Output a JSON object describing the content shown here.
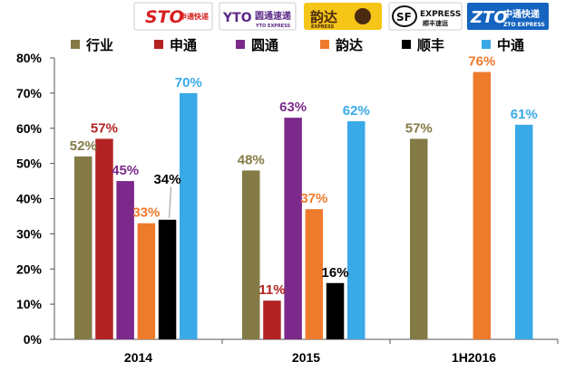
{
  "logos": {
    "sto": {
      "main": "STO",
      "sub": "申通快递"
    },
    "yto": {
      "main": "YTO",
      "cn": "圆通速递",
      "sub": "YTO EXPRESS"
    },
    "yunda": {
      "main": "韵达",
      "sub": "EXPRESS"
    },
    "sf": {
      "main": "SF",
      "en": "EXPRESS",
      "cn": "顺丰速运"
    },
    "zto": {
      "main": "ZTO",
      "cn": "中通快递",
      "sub": "ZTO EXPRESS"
    }
  },
  "chart_data": {
    "type": "bar",
    "categories": [
      "2014",
      "2015",
      "1H2016"
    ],
    "ylim": [
      0,
      80
    ],
    "yticks": [
      "0%",
      "10%",
      "20%",
      "30%",
      "40%",
      "50%",
      "60%",
      "70%",
      "80%"
    ],
    "grid": false,
    "legend_position": "top",
    "series": [
      {
        "name": "行业",
        "color": "#847A45",
        "values": [
          52,
          48,
          57
        ],
        "labels": [
          "52%",
          "48%",
          "57%"
        ]
      },
      {
        "name": "申通",
        "color": "#B22222",
        "values": [
          57,
          11,
          null
        ],
        "labels": [
          "57%",
          "11%",
          ""
        ]
      },
      {
        "name": "圆通",
        "color": "#7B2A8C",
        "values": [
          45,
          63,
          null
        ],
        "labels": [
          "45%",
          "63%",
          ""
        ]
      },
      {
        "name": "韵达",
        "color": "#EE7A2C",
        "values": [
          33,
          37,
          76
        ],
        "labels": [
          "33%",
          "37%",
          "76%"
        ]
      },
      {
        "name": "顺丰",
        "color": "#000000",
        "values": [
          34,
          16,
          null
        ],
        "labels": [
          "34%",
          "16%",
          ""
        ]
      },
      {
        "name": "中通",
        "color": "#3AA9E8",
        "values": [
          70,
          62,
          61
        ],
        "labels": [
          "70%",
          "62%",
          "61%"
        ]
      }
    ]
  }
}
